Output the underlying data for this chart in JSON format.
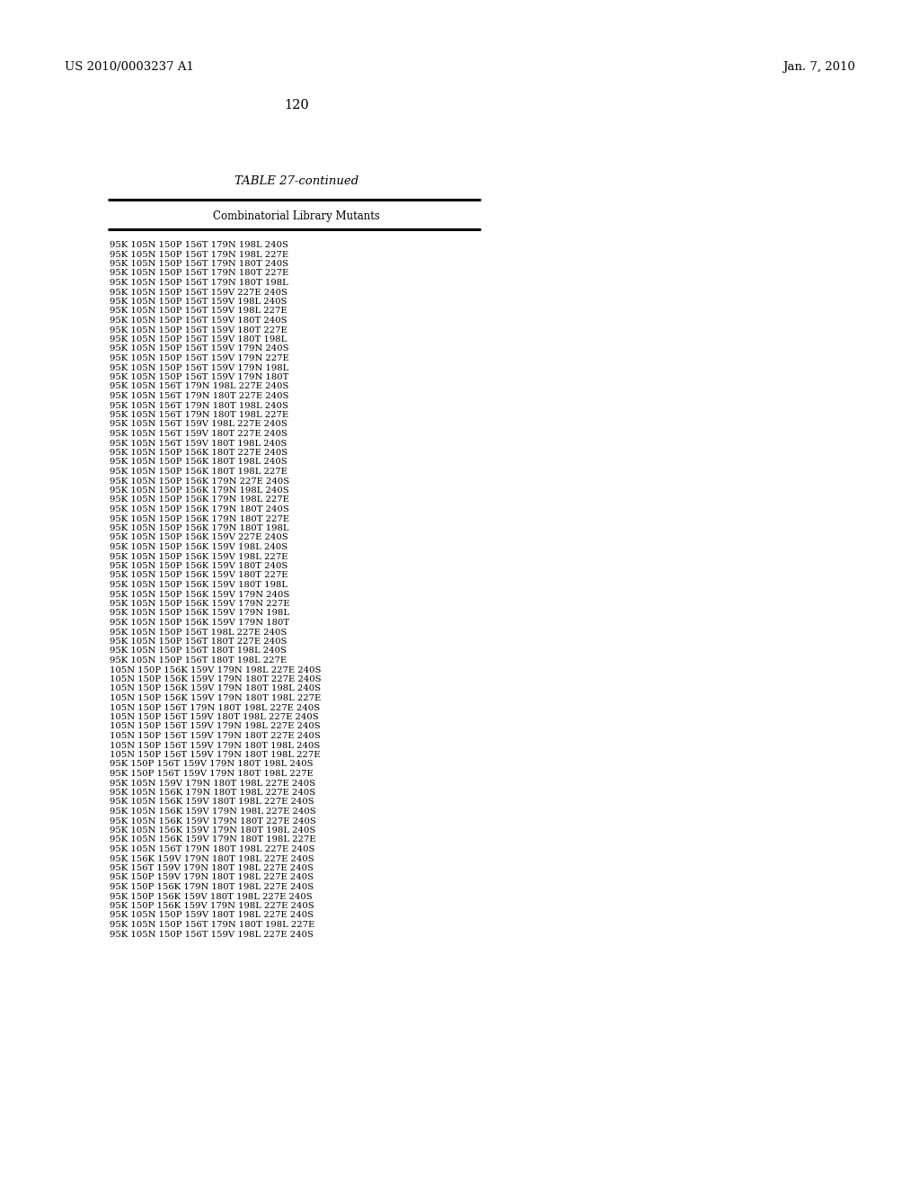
{
  "header_left": "US 2010/0003237 A1",
  "header_right": "Jan. 7, 2010",
  "page_number": "120",
  "table_title": "TABLE 27-continued",
  "column_header": "Combinatorial Library Mutants",
  "rows": [
    "95K 105N 150P 156T 179N 198L 240S",
    "95K 105N 150P 156T 179N 198L 227E",
    "95K 105N 150P 156T 179N 180T 240S",
    "95K 105N 150P 156T 179N 180T 227E",
    "95K 105N 150P 156T 179N 180T 198L",
    "95K 105N 150P 156T 159V 227E 240S",
    "95K 105N 150P 156T 159V 198L 240S",
    "95K 105N 150P 156T 159V 198L 227E",
    "95K 105N 150P 156T 159V 180T 240S",
    "95K 105N 150P 156T 159V 180T 227E",
    "95K 105N 150P 156T 159V 180T 198L",
    "95K 105N 150P 156T 159V 179N 240S",
    "95K 105N 150P 156T 159V 179N 227E",
    "95K 105N 150P 156T 159V 179N 198L",
    "95K 105N 150P 156T 159V 179N 180T",
    "95K 105N 156T 179N 198L 227E 240S",
    "95K 105N 156T 179N 180T 227E 240S",
    "95K 105N 156T 179N 180T 198L 240S",
    "95K 105N 156T 179N 180T 198L 227E",
    "95K 105N 156T 159V 198L 227E 240S",
    "95K 105N 156T 159V 180T 227E 240S",
    "95K 105N 156T 159V 180T 198L 240S",
    "95K 105N 150P 156K 180T 227E 240S",
    "95K 105N 150P 156K 180T 198L 240S",
    "95K 105N 150P 156K 180T 198L 227E",
    "95K 105N 150P 156K 179N 227E 240S",
    "95K 105N 150P 156K 179N 198L 240S",
    "95K 105N 150P 156K 179N 198L 227E",
    "95K 105N 150P 156K 179N 180T 240S",
    "95K 105N 150P 156K 179N 180T 227E",
    "95K 105N 150P 156K 179N 180T 198L",
    "95K 105N 150P 156K 159V 227E 240S",
    "95K 105N 150P 156K 159V 198L 240S",
    "95K 105N 150P 156K 159V 198L 227E",
    "95K 105N 150P 156K 159V 180T 240S",
    "95K 105N 150P 156K 159V 180T 227E",
    "95K 105N 150P 156K 159V 180T 198L",
    "95K 105N 150P 156K 159V 179N 240S",
    "95K 105N 150P 156K 159V 179N 227E",
    "95K 105N 150P 156K 159V 179N 198L",
    "95K 105N 150P 156K 159V 179N 180T",
    "95K 105N 150P 156T 198L 227E 240S",
    "95K 105N 150P 156T 180T 227E 240S",
    "95K 105N 150P 156T 180T 198L 240S",
    "95K 105N 150P 156T 180T 198L 227E",
    "105N 150P 156K 159V 179N 198L 227E 240S",
    "105N 150P 156K 159V 179N 180T 227E 240S",
    "105N 150P 156K 159V 179N 180T 198L 240S",
    "105N 150P 156K 159V 179N 180T 198L 227E",
    "105N 150P 156T 179N 180T 198L 227E 240S",
    "105N 150P 156T 159V 180T 198L 227E 240S",
    "105N 150P 156T 159V 179N 198L 227E 240S",
    "105N 150P 156T 159V 179N 180T 227E 240S",
    "105N 150P 156T 159V 179N 180T 198L 240S",
    "105N 150P 156T 159V 179N 180T 198L 227E",
    "95K 150P 156T 159V 179N 180T 198L 240S",
    "95K 150P 156T 159V 179N 180T 198L 227E",
    "95K 105N 159V 179N 180T 198L 227E 240S",
    "95K 105N 156K 179N 180T 198L 227E 240S",
    "95K 105N 156K 159V 180T 198L 227E 240S",
    "95K 105N 156K 159V 179N 198L 227E 240S",
    "95K 105N 156K 159V 179N 180T 227E 240S",
    "95K 105N 156K 159V 179N 180T 198L 240S",
    "95K 105N 156K 159V 179N 180T 198L 227E",
    "95K 105N 156T 179N 180T 198L 227E 240S",
    "95K 156K 159V 179N 180T 198L 227E 240S",
    "95K 156T 159V 179N 180T 198L 227E 240S",
    "95K 150P 159V 179N 180T 198L 227E 240S",
    "95K 150P 156K 179N 180T 198L 227E 240S",
    "95K 150P 156K 159V 180T 198L 227E 240S",
    "95K 150P 156K 159V 179N 198L 227E 240S",
    "95K 105N 150P 159V 180T 198L 227E 240S",
    "95K 105N 150P 156T 179N 180T 198L 227E",
    "95K 105N 150P 156T 159V 198L 227E 240S"
  ],
  "page_width": 10.24,
  "page_height": 13.2,
  "dpi": 100
}
